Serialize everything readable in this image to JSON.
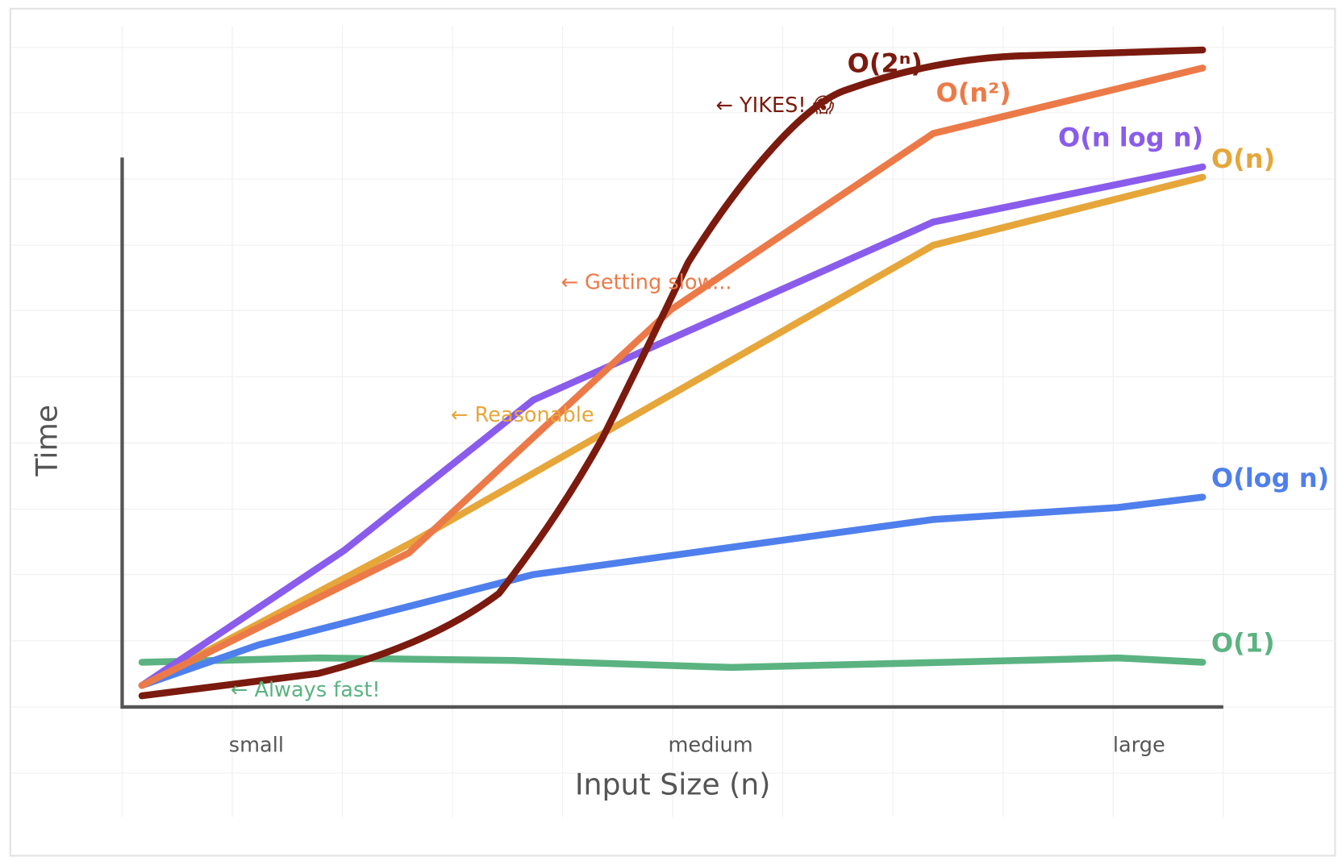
{
  "axes": {
    "y_label": "Time",
    "x_label": "Input Size (n)",
    "x_categories": [
      "small",
      "medium",
      "large"
    ]
  },
  "curves": [
    {
      "label": "O(2ⁿ)",
      "annotation": "← YIKES! 😱"
    },
    {
      "label": "O(n²)",
      "annotation": "← Getting slow..."
    },
    {
      "label": "O(n log n)"
    },
    {
      "label": "O(n)",
      "annotation": "← Reasonable"
    },
    {
      "label": "O(log n)"
    },
    {
      "label": "O(1)",
      "annotation": "← Always fast!"
    }
  ]
}
